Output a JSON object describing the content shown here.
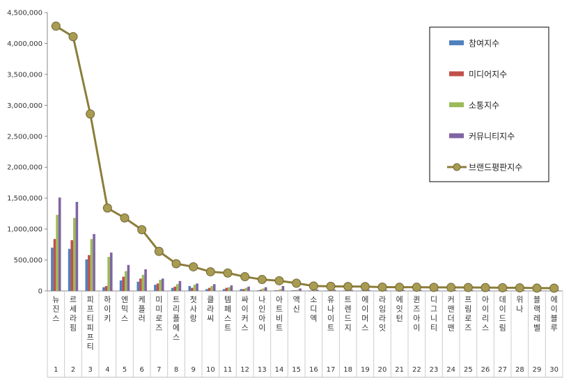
{
  "chart_data": {
    "type": "bar",
    "title": "",
    "xlabel": "",
    "ylabel": "",
    "ylim": [
      0,
      4500000
    ],
    "yticks": [
      "0",
      "500,000",
      "1,000,000",
      "1,500,000",
      "2,000,000",
      "2,500,000",
      "3,000,000",
      "3,500,000",
      "4,000,000",
      "4,500,000"
    ],
    "grid": false,
    "legend_position": "right",
    "categories": [
      "뉴진스",
      "르세라핌",
      "피프티피프티",
      "하이키",
      "엔믹스",
      "케플러",
      "미미로즈",
      "트리플에스",
      "첫사랑",
      "클라씨",
      "템페스트",
      "싸이커스",
      "나인아이",
      "아트비트",
      "액신",
      "소디엑",
      "유나이트",
      "트렌드지",
      "에이머스",
      "라임라잇",
      "에잇턴",
      "퀸즈아이",
      "디그니티",
      "커맨더맨",
      "프림로즈",
      "아이리스",
      "데이드림",
      "위나",
      "블랙레벨",
      "에이블루"
    ],
    "indices": [
      "1",
      "2",
      "3",
      "4",
      "5",
      "6",
      "7",
      "8",
      "9",
      "10",
      "11",
      "12",
      "13",
      "14",
      "15",
      "16",
      "17",
      "18",
      "19",
      "20",
      "21",
      "22",
      "23",
      "24",
      "25",
      "26",
      "27",
      "28",
      "29",
      "30"
    ],
    "series": [
      {
        "name": "참여지수",
        "color": "#4f81bd",
        "kind": "bar",
        "values": [
          700000,
          680000,
          510000,
          60000,
          170000,
          150000,
          100000,
          50000,
          80000,
          30000,
          30000,
          30000,
          10000,
          10000,
          10000,
          8000,
          8000,
          8000,
          8000,
          6000,
          6000,
          6000,
          6000,
          6000,
          6000,
          6000,
          5000,
          5000,
          5000,
          5000
        ]
      },
      {
        "name": "미디어지수",
        "color": "#c0504d",
        "kind": "bar",
        "values": [
          840000,
          820000,
          580000,
          80000,
          230000,
          200000,
          120000,
          70000,
          50000,
          50000,
          50000,
          30000,
          20000,
          10000,
          10000,
          8000,
          8000,
          8000,
          8000,
          6000,
          6000,
          6000,
          6000,
          6000,
          6000,
          6000,
          5000,
          5000,
          5000,
          5000
        ]
      },
      {
        "name": "소통지수",
        "color": "#9bbb59",
        "kind": "bar",
        "values": [
          1230000,
          1180000,
          840000,
          550000,
          320000,
          260000,
          180000,
          110000,
          100000,
          80000,
          60000,
          50000,
          40000,
          30000,
          20000,
          15000,
          15000,
          12000,
          12000,
          10000,
          10000,
          10000,
          10000,
          10000,
          10000,
          10000,
          8000,
          8000,
          8000,
          8000
        ]
      },
      {
        "name": "커뮤니티지수",
        "color": "#8064a2",
        "kind": "bar",
        "values": [
          1510000,
          1440000,
          920000,
          620000,
          420000,
          350000,
          200000,
          160000,
          120000,
          110000,
          90000,
          70000,
          60000,
          80000,
          40000,
          20000,
          20000,
          18000,
          18000,
          15000,
          15000,
          15000,
          15000,
          15000,
          15000,
          15000,
          12000,
          12000,
          12000,
          12000
        ]
      },
      {
        "name": "브랜드평판지수",
        "color": "#8b7d3a",
        "kind": "line",
        "values": [
          4280000,
          4110000,
          2860000,
          1340000,
          1180000,
          990000,
          640000,
          440000,
          390000,
          310000,
          290000,
          230000,
          185000,
          165000,
          125000,
          80000,
          75000,
          72000,
          70000,
          62000,
          60000,
          60000,
          58000,
          57000,
          56000,
          55000,
          52000,
          50000,
          46000,
          45000
        ]
      }
    ]
  }
}
